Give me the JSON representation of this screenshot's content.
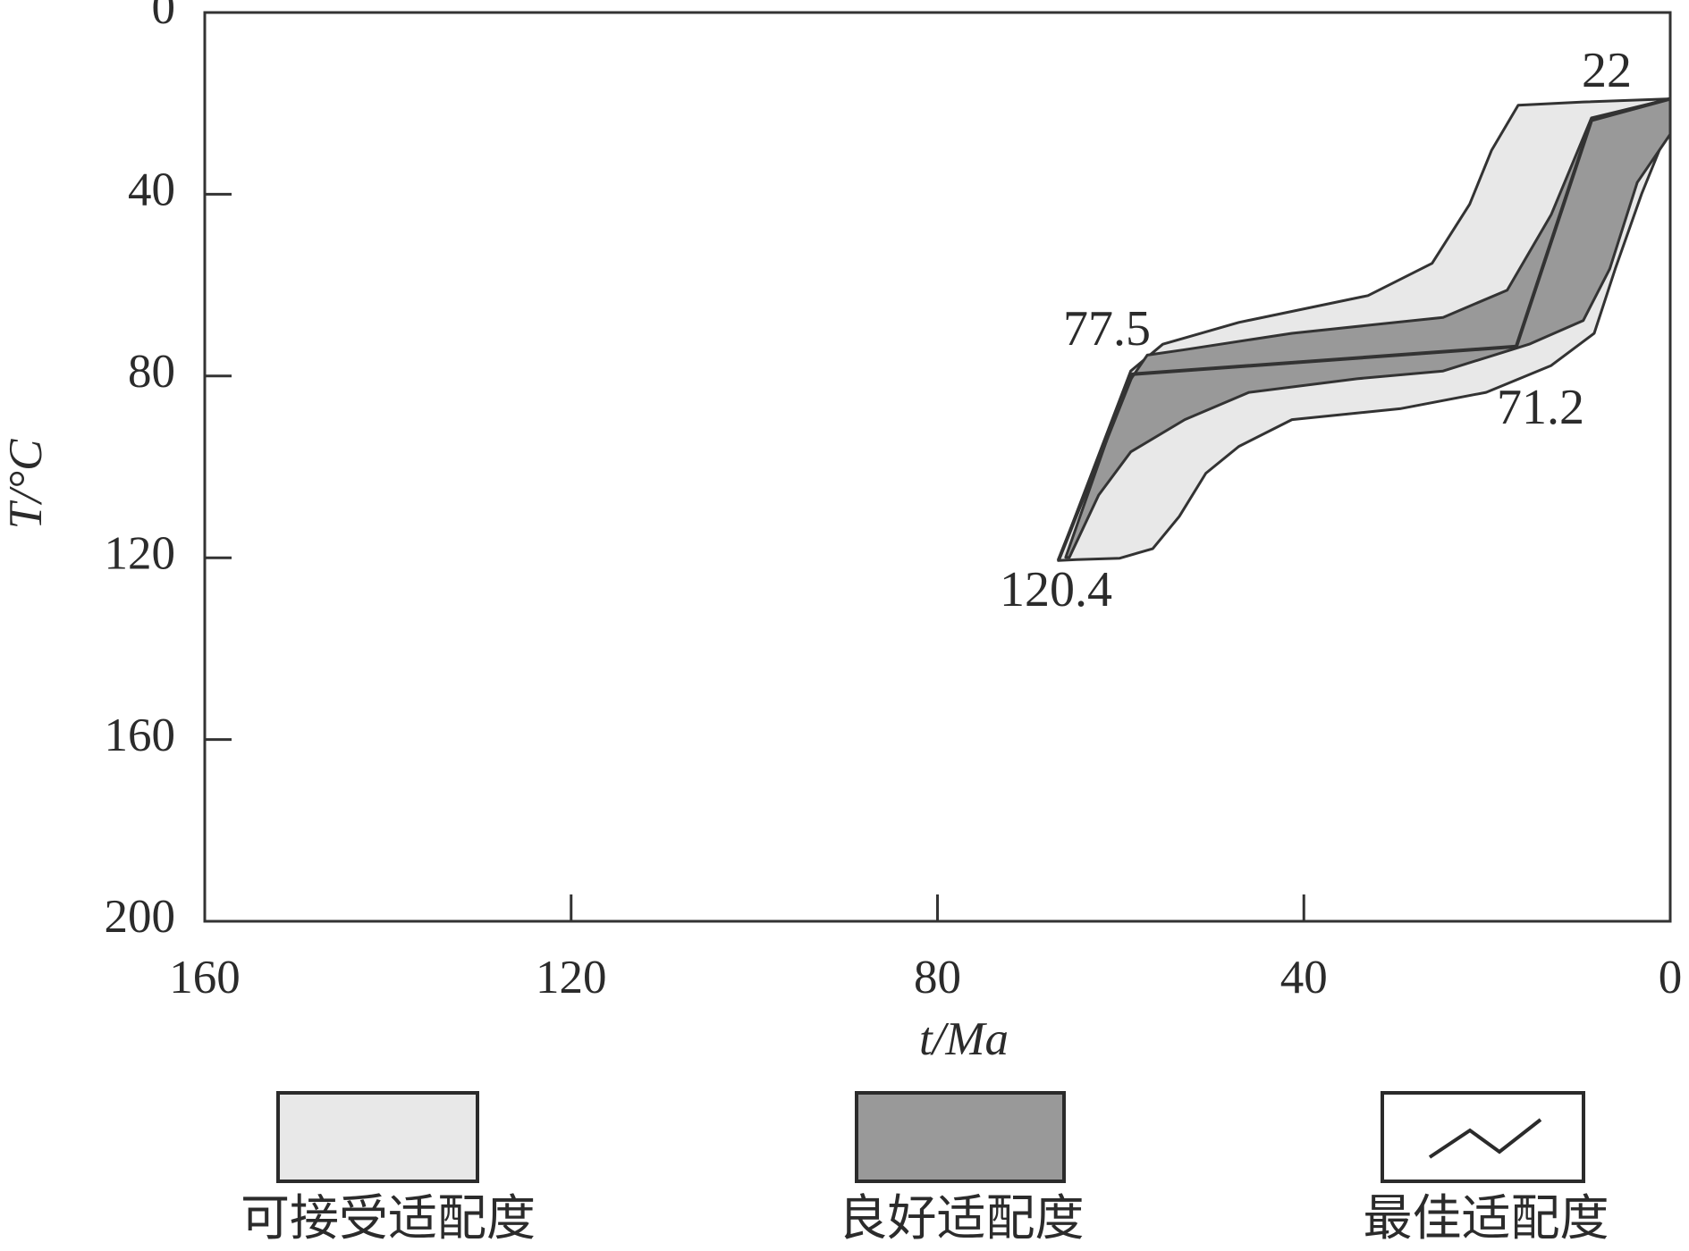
{
  "chart_data": {
    "type": "envelope",
    "x_label": "t/Ma",
    "y_label": "T/°C",
    "xlim": [
      160,
      0
    ],
    "xticks": [
      160,
      120,
      80,
      40,
      0
    ],
    "ylim": [
      0,
      200
    ],
    "yticks": [
      0,
      40,
      80,
      120,
      160,
      200
    ],
    "y_inverted": true,
    "grid": false,
    "legend_position": "bottom",
    "annotations": [
      "22",
      "77.5",
      "71.2",
      "120.4"
    ],
    "series": [
      {
        "name": "可接受适配度",
        "kind": "polygon",
        "color": "#e8e8e8",
        "x": [
          66.8,
          58.9,
          55.4,
          47.1,
          33,
          26,
          21.9,
          19.5,
          16.6,
          9.5,
          0,
          0,
          3.1,
          6,
          8.3,
          13,
          20.1,
          29.5,
          41.3,
          47.1,
          50.7,
          53.6,
          56.5,
          60.1,
          64.8
        ],
        "values": [
          120.6,
          78.9,
          73,
          68.2,
          62.3,
          55.2,
          42.2,
          30.3,
          20.4,
          19.7,
          19,
          24.4,
          39.8,
          56.4,
          70.6,
          77.7,
          83.6,
          87.2,
          89.6,
          95.5,
          101.4,
          110.9,
          118,
          120.1,
          120.4
        ]
      },
      {
        "name": "良好适配度",
        "kind": "polygon",
        "color": "#999999",
        "x": [
          66,
          59.5,
          57.1,
          53,
          41.3,
          24.8,
          17.8,
          13,
          8.6,
          0,
          0,
          3.6,
          6.6,
          9.5,
          15.4,
          24.8,
          34.2,
          46,
          53,
          58.9,
          62.4,
          65.6
        ],
        "values": [
          119.9,
          82.5,
          75.4,
          74.2,
          70.6,
          67.1,
          61.1,
          44.5,
          23.2,
          19,
          26.8,
          37.4,
          56.4,
          67.8,
          73,
          78.9,
          80.6,
          83.6,
          89.6,
          96.7,
          106.2,
          119.9
        ]
      },
      {
        "name": "最佳适配度",
        "kind": "line",
        "color": "#333333",
        "x": [
          66.8,
          58.7,
          16.8,
          8.6,
          0
        ],
        "values": [
          120.6,
          79.6,
          73.5,
          23.7,
          19
        ]
      }
    ]
  }
}
